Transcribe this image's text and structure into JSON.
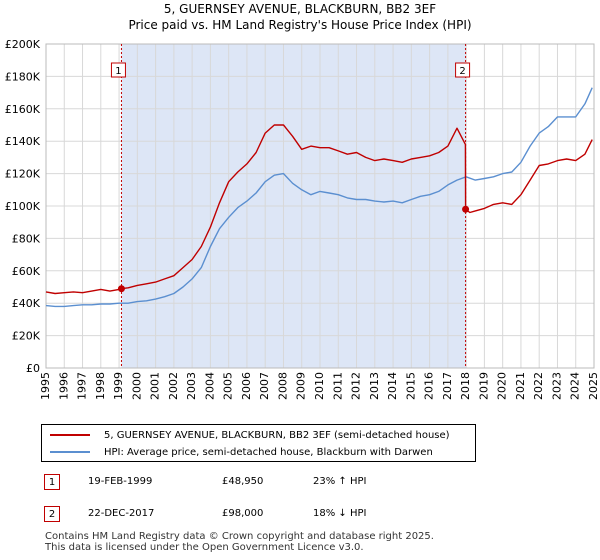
{
  "header": {
    "title": "5, GUERNSEY AVENUE, BLACKBURN, BB2 3EF",
    "subtitle": "Price paid vs. HM Land Registry's House Price Index (HPI)"
  },
  "colors": {
    "property": "#c00000",
    "hpi": "#5b8fd0",
    "shade": "#dde6f6",
    "grid": "#d8d8d8"
  },
  "chart_data": {
    "type": "line",
    "ylim": [
      0,
      200000
    ],
    "xlim": [
      1995,
      2025
    ],
    "y_ticks": [
      {
        "value": 0,
        "label": "£0"
      },
      {
        "value": 20000,
        "label": "£20K"
      },
      {
        "value": 40000,
        "label": "£40K"
      },
      {
        "value": 60000,
        "label": "£60K"
      },
      {
        "value": 80000,
        "label": "£80K"
      },
      {
        "value": 100000,
        "label": "£100K"
      },
      {
        "value": 120000,
        "label": "£120K"
      },
      {
        "value": 140000,
        "label": "£140K"
      },
      {
        "value": 160000,
        "label": "£160K"
      },
      {
        "value": 180000,
        "label": "£180K"
      },
      {
        "value": 200000,
        "label": "£200K"
      }
    ],
    "x_ticks": [
      "1995",
      "1996",
      "1997",
      "1998",
      "1999",
      "2000",
      "2001",
      "2002",
      "2003",
      "2004",
      "2005",
      "2006",
      "2007",
      "2008",
      "2009",
      "2010",
      "2011",
      "2012",
      "2013",
      "2014",
      "2015",
      "2016",
      "2017",
      "2018",
      "2019",
      "2020",
      "2021",
      "2022",
      "2023",
      "2024",
      "2025"
    ],
    "shaded_range": [
      1999.13,
      2017.97
    ],
    "markers": [
      {
        "label": "1",
        "x": 1999.13,
        "y": 48950
      },
      {
        "label": "2",
        "x": 2017.97,
        "y": 98000
      }
    ],
    "series": [
      {
        "name": "5, GUERNSEY AVENUE, BLACKBURN, BB2 3EF (semi-detached house)",
        "x": [
          1995.0,
          1995.5,
          1996.0,
          1996.5,
          1997.0,
          1997.5,
          1998.0,
          1998.5,
          1999.0,
          1999.13,
          1999.5,
          2000.0,
          2000.5,
          2001.0,
          2001.5,
          2002.0,
          2002.5,
          2003.0,
          2003.5,
          2004.0,
          2004.5,
          2005.0,
          2005.5,
          2006.0,
          2006.5,
          2007.0,
          2007.5,
          2008.0,
          2008.5,
          2009.0,
          2009.5,
          2010.0,
          2010.5,
          2011.0,
          2011.5,
          2012.0,
          2012.5,
          2013.0,
          2013.5,
          2014.0,
          2014.5,
          2015.0,
          2015.5,
          2016.0,
          2016.5,
          2017.0,
          2017.5,
          2017.96,
          2017.97,
          2018.2,
          2018.5,
          2019.0,
          2019.5,
          2020.0,
          2020.5,
          2021.0,
          2021.5,
          2022.0,
          2022.5,
          2023.0,
          2023.5,
          2024.0,
          2024.5,
          2024.9
        ],
        "values": [
          47000,
          46000,
          46500,
          47000,
          46500,
          47500,
          48500,
          47500,
          48500,
          48950,
          49500,
          51000,
          52000,
          53000,
          55000,
          57000,
          62000,
          67000,
          75000,
          87000,
          102000,
          115000,
          121000,
          126000,
          133000,
          145000,
          150000,
          150000,
          143000,
          135000,
          137000,
          136000,
          136000,
          134000,
          132000,
          133000,
          130000,
          128000,
          129000,
          128000,
          127000,
          129000,
          130000,
          131000,
          133000,
          137000,
          148000,
          138000,
          98000,
          96000,
          97000,
          98500,
          101000,
          102000,
          101000,
          107000,
          116000,
          125000,
          126000,
          128000,
          129000,
          128000,
          132000,
          141000
        ]
      },
      {
        "name": "HPI: Average price, semi-detached house, Blackburn with Darwen",
        "x": [
          1995.0,
          1995.5,
          1996.0,
          1996.5,
          1997.0,
          1997.5,
          1998.0,
          1998.5,
          1999.0,
          1999.5,
          2000.0,
          2000.5,
          2001.0,
          2001.5,
          2002.0,
          2002.5,
          2003.0,
          2003.5,
          2004.0,
          2004.5,
          2005.0,
          2005.5,
          2006.0,
          2006.5,
          2007.0,
          2007.5,
          2008.0,
          2008.5,
          2009.0,
          2009.5,
          2010.0,
          2010.5,
          2011.0,
          2011.5,
          2012.0,
          2012.5,
          2013.0,
          2013.5,
          2014.0,
          2014.5,
          2015.0,
          2015.5,
          2016.0,
          2016.5,
          2017.0,
          2017.5,
          2018.0,
          2018.5,
          2019.0,
          2019.5,
          2020.0,
          2020.5,
          2021.0,
          2021.5,
          2022.0,
          2022.5,
          2023.0,
          2023.5,
          2024.0,
          2024.5,
          2024.9
        ],
        "values": [
          38500,
          38000,
          38000,
          38500,
          39000,
          39000,
          39500,
          39500,
          40000,
          40000,
          41000,
          41500,
          42500,
          44000,
          46000,
          50000,
          55000,
          62000,
          75000,
          86000,
          93000,
          99000,
          103000,
          108000,
          115000,
          119000,
          120000,
          114000,
          110000,
          107000,
          109000,
          108000,
          107000,
          105000,
          104000,
          104000,
          103000,
          102500,
          103000,
          102000,
          104000,
          106000,
          107000,
          109000,
          113000,
          116000,
          118000,
          116000,
          117000,
          118000,
          120000,
          121000,
          127000,
          137000,
          145000,
          149000,
          155000,
          155000,
          155000,
          163000,
          173000
        ]
      }
    ]
  },
  "legend": {
    "property_label": "5, GUERNSEY AVENUE, BLACKBURN, BB2 3EF (semi-detached house)",
    "hpi_label": "HPI: Average price, semi-detached house, Blackburn with Darwen"
  },
  "transactions": [
    {
      "num": "1",
      "date": "19-FEB-1999",
      "price": "£48,950",
      "hpi_change": "23% ↑ HPI"
    },
    {
      "num": "2",
      "date": "22-DEC-2017",
      "price": "£98,000",
      "hpi_change": "18% ↓ HPI"
    }
  ],
  "footer": {
    "line1": "Contains HM Land Registry data © Crown copyright and database right 2025.",
    "line2": "This data is licensed under the Open Government Licence v3.0."
  }
}
